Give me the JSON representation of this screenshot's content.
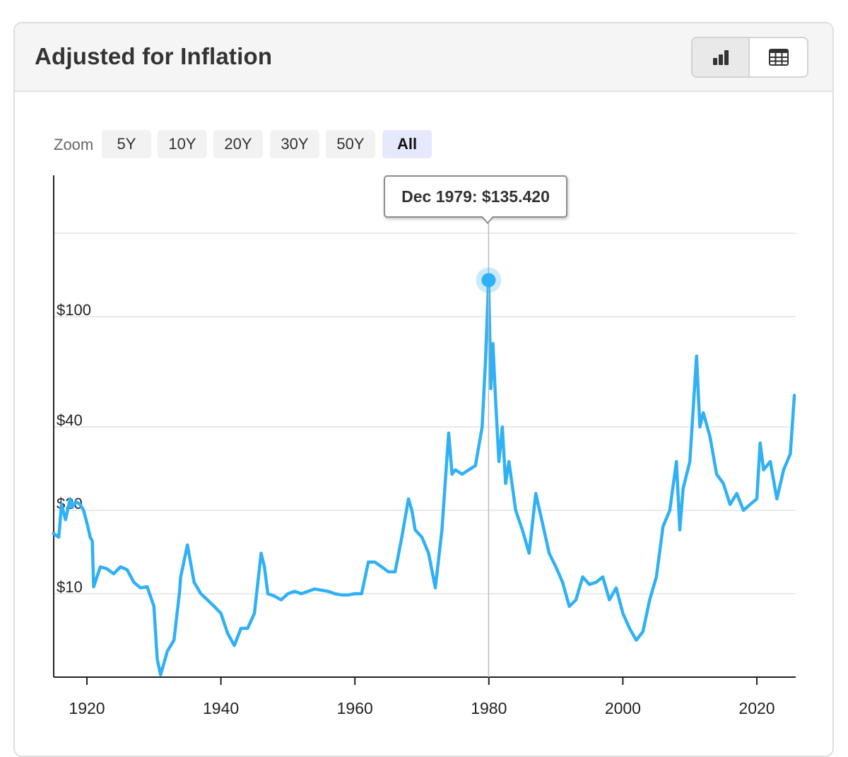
{
  "header": {
    "title": "Adjusted for Inflation",
    "view_toggle": [
      {
        "icon": "bar-chart-icon",
        "active": true
      },
      {
        "icon": "table-icon",
        "active": false
      }
    ]
  },
  "zoom": {
    "label": "Zoom",
    "options": [
      "5Y",
      "10Y",
      "20Y",
      "30Y",
      "50Y",
      "All"
    ],
    "selected": "All"
  },
  "tooltip": {
    "text": "Dec 1979: $135.420"
  },
  "colors": {
    "series": "#30b0f5",
    "grid": "#e3e3e3",
    "axis": "#222222",
    "active_zoom_bg": "#e6e9fb"
  },
  "chart_data": {
    "type": "line",
    "title": "Adjusted for Inflation",
    "xlabel": "",
    "ylabel": "",
    "y_scale": "log",
    "x_ticks": [
      "1920",
      "1940",
      "1960",
      "1980",
      "2000",
      "2020"
    ],
    "y_ticks": [
      "$10",
      "$20",
      "$40",
      "$100"
    ],
    "xlim": [
      1915,
      2026
    ],
    "grid": true,
    "highlight": {
      "x": 1979.96,
      "y": 135.42,
      "label": "Dec 1979: $135.420"
    },
    "series": [
      {
        "x": [
          1915.0,
          1915.8,
          1916.2,
          1916.8,
          1917.5,
          1917.8,
          1918.3,
          1919.0,
          1919.5,
          1920.0,
          1920.5,
          1920.8,
          1921.0,
          1921.5,
          1922.0,
          1923.0,
          1924.0,
          1925.0,
          1926.0,
          1927.0,
          1928.0,
          1929.0,
          1930.0,
          1930.5,
          1931.0,
          1932.0,
          1933.0,
          1933.8,
          1934.0,
          1935.0,
          1936.0,
          1937.0,
          1938.0,
          1939.0,
          1940.0,
          1941.0,
          1942.0,
          1943.0,
          1944.0,
          1945.0,
          1946.0,
          1946.5,
          1947.0,
          1948.0,
          1949.0,
          1950.0,
          1951.0,
          1952.0,
          1953.0,
          1954.0,
          1955.0,
          1956.0,
          1957.0,
          1958.0,
          1959.0,
          1960.0,
          1961.0,
          1962.0,
          1963.0,
          1964.0,
          1965.0,
          1966.0,
          1967.0,
          1968.0,
          1968.5,
          1969.0,
          1970.0,
          1971.0,
          1972.0,
          1973.0,
          1974.0,
          1974.5,
          1975.0,
          1976.0,
          1977.0,
          1978.0,
          1979.0,
          1979.5,
          1979.96,
          1980.3,
          1980.6,
          1981.0,
          1981.5,
          1982.0,
          1982.5,
          1983.0,
          1984.0,
          1985.0,
          1986.0,
          1987.0,
          1988.0,
          1989.0,
          1990.0,
          1991.0,
          1992.0,
          1993.0,
          1994.0,
          1995.0,
          1996.0,
          1997.0,
          1998.0,
          1999.0,
          2000.0,
          2001.0,
          2002.0,
          2003.0,
          2004.0,
          2005.0,
          2006.0,
          2007.0,
          2008.0,
          2008.5,
          2009.0,
          2010.0,
          2011.0,
          2011.5,
          2012.0,
          2013.0,
          2014.0,
          2015.0,
          2016.0,
          2017.0,
          2018.0,
          2019.0,
          2020.0,
          2020.5,
          2021.0,
          2022.0,
          2023.0,
          2024.0,
          2025.0,
          2025.6
        ],
        "y": [
          16.5,
          16.0,
          21.0,
          18.5,
          22.0,
          20.5,
          21.5,
          21.0,
          20.0,
          18.0,
          16.0,
          15.5,
          10.6,
          11.5,
          12.5,
          12.3,
          11.8,
          12.5,
          12.2,
          11.0,
          10.5,
          10.6,
          9.0,
          5.8,
          5.1,
          6.2,
          6.8,
          10.0,
          11.5,
          15.0,
          11.0,
          10.0,
          9.5,
          9.0,
          8.5,
          7.2,
          6.5,
          7.5,
          7.5,
          8.5,
          14.0,
          12.5,
          10.0,
          9.8,
          9.5,
          10.0,
          10.2,
          10.0,
          10.2,
          10.4,
          10.3,
          10.2,
          10.0,
          9.9,
          9.9,
          10.0,
          10.0,
          13.0,
          13.0,
          12.5,
          12.0,
          12.0,
          16.0,
          22.0,
          20.0,
          17.0,
          16.0,
          14.0,
          10.5,
          17.0,
          38.0,
          27.0,
          28.0,
          27.0,
          28.0,
          29.0,
          40.0,
          70.0,
          135.42,
          55.0,
          80.0,
          50.0,
          30.0,
          40.0,
          25.0,
          30.0,
          20.0,
          17.0,
          14.0,
          23.0,
          18.0,
          14.0,
          12.5,
          11.0,
          9.0,
          9.5,
          11.5,
          10.8,
          11.0,
          11.5,
          9.5,
          10.5,
          8.5,
          7.5,
          6.8,
          7.3,
          9.5,
          11.5,
          17.5,
          20.0,
          30.0,
          17.0,
          24.0,
          30.0,
          72.0,
          40.0,
          45.0,
          37.0,
          27.0,
          25.0,
          21.0,
          23.0,
          20.0,
          21.0,
          22.0,
          35.0,
          28.0,
          30.0,
          22.0,
          28.0,
          32.0,
          52.0
        ]
      }
    ]
  }
}
